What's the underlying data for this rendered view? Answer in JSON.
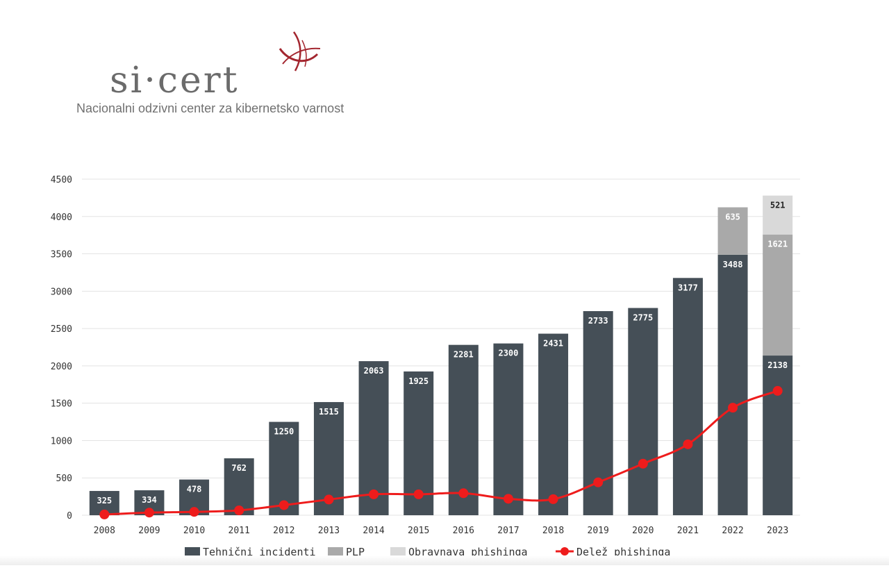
{
  "logo": {
    "text": "si·cert",
    "tagline": "Nacionalni odzivni center za kibernetsko varnost",
    "mark_color": "#a3262f"
  },
  "chart_data": {
    "type": "bar",
    "stacked": true,
    "categories": [
      "2008",
      "2009",
      "2010",
      "2011",
      "2012",
      "2013",
      "2014",
      "2015",
      "2016",
      "2017",
      "2018",
      "2019",
      "2020",
      "2021",
      "2022",
      "2023"
    ],
    "ylim": [
      0,
      4500
    ],
    "yticks": [
      0,
      500,
      1000,
      1500,
      2000,
      2500,
      3000,
      3500,
      4000,
      4500
    ],
    "grid": true,
    "legend_position": "bottom",
    "series": [
      {
        "name": "Tehnični incidenti",
        "kind": "bar",
        "color": "#454f57",
        "label_color": "#ffffff",
        "values": [
          325,
          334,
          478,
          762,
          1250,
          1515,
          2063,
          1925,
          2281,
          2300,
          2431,
          2733,
          2775,
          3177,
          3488,
          2138
        ]
      },
      {
        "name": "PLP",
        "kind": "bar",
        "color": "#a9a9a9",
        "label_color": "#ffffff",
        "values": [
          0,
          0,
          0,
          0,
          0,
          0,
          0,
          0,
          0,
          0,
          0,
          0,
          0,
          0,
          635,
          1621
        ]
      },
      {
        "name": "Obravnava phishinga",
        "kind": "bar",
        "color": "#d9d9d9",
        "label_color": "#222222",
        "values": [
          0,
          0,
          0,
          0,
          0,
          0,
          0,
          0,
          0,
          0,
          0,
          0,
          0,
          0,
          0,
          521
        ]
      },
      {
        "name": "Delež phishinga",
        "kind": "line",
        "color": "#ee1c1c",
        "values": [
          10,
          35,
          45,
          65,
          135,
          210,
          280,
          280,
          295,
          220,
          215,
          440,
          690,
          950,
          1440,
          1665
        ]
      }
    ]
  }
}
